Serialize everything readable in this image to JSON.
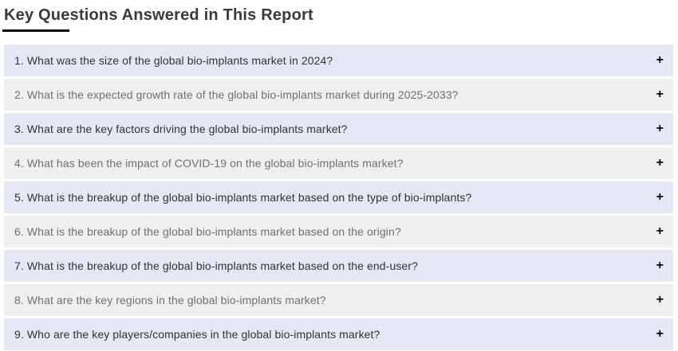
{
  "page": {
    "title": "Key Questions Answered in This Report"
  },
  "ui": {
    "expand_icon": "+"
  },
  "colors": {
    "row_lavender_bg": "#e5e7f4",
    "row_gray_bg": "#efefef",
    "question_dark_text": "#333333",
    "question_gray_text": "#707070",
    "title_text": "#3a3a3a",
    "title_underline": "#0a0a0a",
    "expand_icon": "#000000",
    "page_bg": "#ffffff"
  },
  "questions": [
    {
      "label": "1. What was the size of the global bio-implants market in 2024?"
    },
    {
      "label": "2. What is the expected growth rate of the global bio-implants market during 2025-2033?"
    },
    {
      "label": "3. What are the key factors driving the global bio-implants market?"
    },
    {
      "label": "4. What has been the impact of COVID-19 on the global bio-implants market?"
    },
    {
      "label": "5. What is the breakup of the global bio-implants market based on the type of bio-implants?"
    },
    {
      "label": "6. What is the breakup of the global bio-implants market based on the origin?"
    },
    {
      "label": "7. What is the breakup of the global bio-implants market based on the end-user?"
    },
    {
      "label": "8. What are the key regions in the global bio-implants market?"
    },
    {
      "label": "9. Who are the key players/companies in the global bio-implants market?"
    }
  ]
}
